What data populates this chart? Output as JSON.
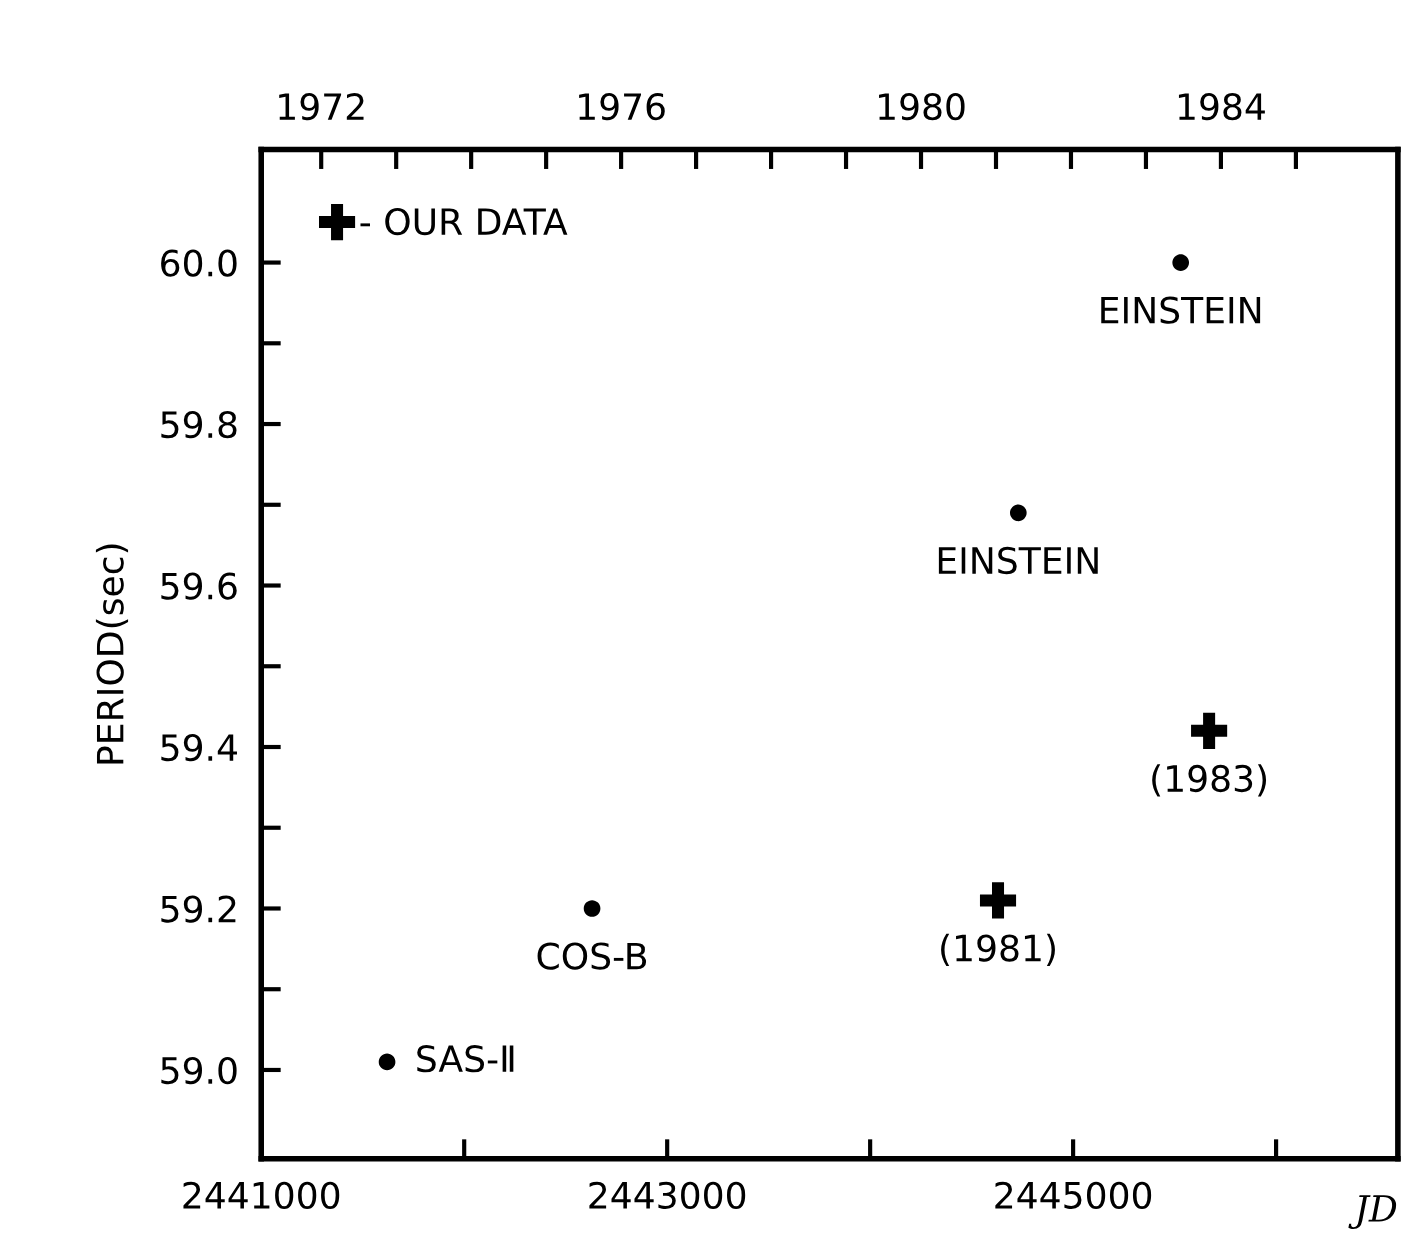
{
  "chart_data": {
    "type": "scatter",
    "ylabel": "PERIOD(sec)",
    "xlabel": "JD",
    "x2label": null,
    "series": [
      {
        "color": "#000000",
        "marker": "circle",
        "x": [
          2441620,
          2442630,
          2444730,
          2445530
        ],
        "values": [
          59.01,
          59.2,
          59.69,
          60.0
        ]
      },
      {
        "name": "- OUR DATA",
        "color": "#000000",
        "marker": "cross",
        "x": [
          2444630,
          2445670
        ],
        "values": [
          59.21,
          59.42
        ]
      }
    ],
    "annotations": [
      {
        "text": "SAS-Ⅱ",
        "x": 2441620,
        "y": 59.01
      },
      {
        "text": "COS-B",
        "x": 2442630,
        "y": 59.2
      },
      {
        "text": "EINSTEIN",
        "x": 2444730,
        "y": 59.69
      },
      {
        "text": "EINSTEIN",
        "x": 2445530,
        "y": 60.0
      },
      {
        "text": "(1981)",
        "x": 2444630,
        "y": 59.21
      },
      {
        "text": "(1983)",
        "x": 2445670,
        "y": 59.42
      }
    ],
    "xlim": [
      2441000,
      2446600
    ],
    "xticks": [
      2441000,
      {
        "value": 2442000,
        "label": null
      },
      2443000,
      {
        "value": 2444000,
        "label": null
      },
      2445000,
      {
        "value": 2446000,
        "label": null
      }
    ],
    "x2lim": [
      1971.2,
      1986.36
    ],
    "x2ticks": [
      1972,
      {
        "value": 1973,
        "label": null
      },
      {
        "value": 1974,
        "label": null
      },
      {
        "value": 1975,
        "label": null
      },
      1976,
      {
        "value": 1977,
        "label": null
      },
      {
        "value": 1978,
        "label": null
      },
      {
        "value": 1979,
        "label": null
      },
      1980,
      {
        "value": 1981,
        "label": null
      },
      {
        "value": 1982,
        "label": null
      },
      {
        "value": 1983,
        "label": null
      },
      1984,
      {
        "value": 1985,
        "label": null
      }
    ],
    "ylim": [
      58.89,
      60.14
    ],
    "yticks": [
      {
        "value": 59,
        "label": "59.0"
      },
      {
        "value": 59.1,
        "label": null
      },
      59.2,
      {
        "value": 59.3,
        "label": null
      },
      59.4,
      {
        "value": 59.5,
        "label": null
      },
      59.6,
      {
        "value": 59.7,
        "label": null
      },
      59.8,
      {
        "value": 59.9,
        "label": null
      },
      {
        "value": 60,
        "label": "60.0"
      }
    ],
    "legend": "top left",
    "grid": false
  }
}
